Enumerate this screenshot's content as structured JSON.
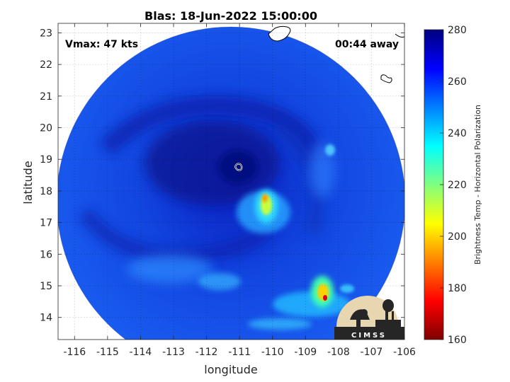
{
  "title": "Blas: 18-Jun-2022 15:00:00",
  "xlabel": "longitude",
  "ylabel": "latitude",
  "vmax_text": "Vmax: 47 kts",
  "away_text": "00:44 away",
  "x_ticks": [
    "-116",
    "-115",
    "-114",
    "-113",
    "-112",
    "-111",
    "-110",
    "-109",
    "-108",
    "-107",
    "-106"
  ],
  "y_ticks": [
    "14",
    "15",
    "16",
    "17",
    "18",
    "19",
    "20",
    "21",
    "22",
    "23"
  ],
  "colorbar": {
    "label": "Brightness Temp - Horizontal Polarization",
    "ticks": [
      "160",
      "180",
      "200",
      "220",
      "240",
      "260",
      "280"
    ],
    "min": 160,
    "max": 280,
    "colormap": "jet"
  },
  "logo_text": "CIMSS",
  "map": {
    "lon_range": [
      -116.5,
      -106
    ],
    "lat_range": [
      13.3,
      23.3
    ],
    "center_eye": {
      "lon": -111.0,
      "lat": 18.85
    },
    "swath_center": {
      "lon": -111.1,
      "lat": 18.3
    },
    "background_temp": 258,
    "features": [
      {
        "name": "eye",
        "lon": -111.1,
        "lat": 18.85,
        "temp": 270
      },
      {
        "name": "convection-north-of-center",
        "lon": -110.1,
        "lat": 17.6,
        "temp": 210
      },
      {
        "name": "convection-southeast",
        "lon": -108.4,
        "lat": 14.6,
        "temp": 180
      },
      {
        "name": "rainband-south",
        "lon": -111.5,
        "lat": 15.2,
        "temp": 240
      },
      {
        "name": "rainband-east",
        "lon": -108.7,
        "lat": 19.3,
        "temp": 242
      }
    ]
  }
}
